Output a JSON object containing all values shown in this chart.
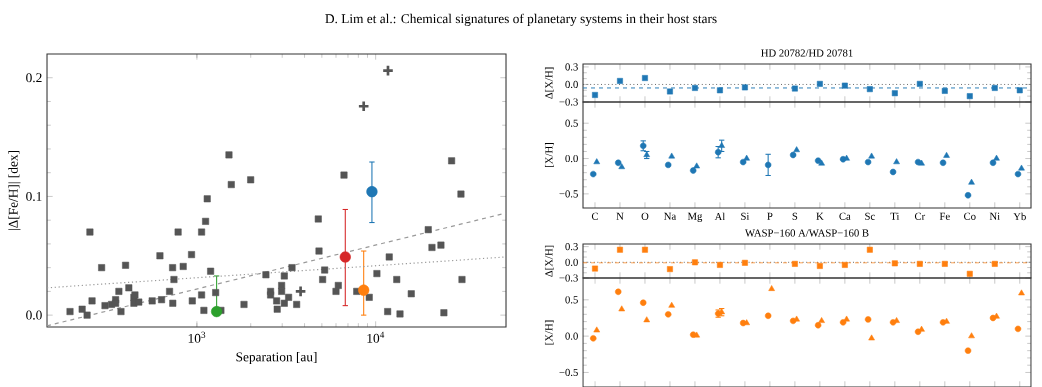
{
  "chart_data": [
    {
      "type": "scatter",
      "xlabel": "Separation [au]",
      "ylabel": "|Δ[Fe/H]| [dex]",
      "log": "x",
      "annotations": [
        "D. Lim et al.: Chemical signatures of planetary systems in their host stars"
      ],
      "xlim": [
        145,
        53600
      ],
      "ylim": [
        -0.01,
        0.22
      ],
      "xticks": [
        {
          "value": 1000,
          "label": "10$^{3}$"
        },
        {
          "value": 10000,
          "label": "10$^{4}$"
        }
      ],
      "yticks": [
        {
          "value": 0,
          "label": "0.0"
        },
        {
          "value": 0.1,
          "label": "0.1"
        },
        {
          "value": 0.2,
          "label": "0.2"
        }
      ],
      "series": [
        {
          "type": "scatter",
          "marker": "square",
          "color": "#555555",
          "x": [
            252,
            293,
            259,
            243,
            306,
            333,
            351,
            351,
            366,
            399,
            416,
            444,
            450,
            444,
            473,
            562,
            621,
            634,
            703,
            731,
            733,
            744,
            785,
            942,
            1062,
            1062,
            1094,
            1118,
            1142,
            1193,
            1273,
            1511,
            1557,
            1999,
            2432,
            2583,
            2583,
            2793,
            2813,
            2978,
            2978,
            3083,
            3083,
            3404,
            3614,
            4775,
            5050,
            5184,
            5998,
            6180,
            6650,
            7834,
            9205,
            10160,
            11670,
            13120,
            13680,
            15820,
            19690,
            20650,
            23180,
            24080,
            26600,
            30400
          ],
          "values": [
            0.07,
            0.04,
            0.012,
            0.0,
            0.008,
            0.009,
            0.013,
            0.01,
            0.02,
            0.042,
            0.023,
            0.015,
            0.017,
            0.01,
            0.011,
            0.012,
            0.05,
            0.013,
            0.02,
            0.04,
            0.01,
            0.03,
            0.07,
            0.012,
            0.07,
            0.017,
            0.004,
            0.079,
            0.098,
            0.037,
            0.019,
            0.135,
            0.11,
            0.114,
            0.034,
            0.02,
            0.017,
            0.012,
            0.005,
            0.025,
            0.02,
            0.033,
            0.01,
            0.04,
            0.009,
            0.081,
            0.03,
            0.038,
            0.02,
            0.025,
            0.118,
            0.02,
            0.015,
            0.035,
            0.003,
            0.03,
            0.001,
            0.018,
            0.072,
            0.057,
            0.059,
            0.002,
            0.13,
            0.03
          ]
        },
        {
          "type": "scatter",
          "marker": "square",
          "color": "#555555",
          "x": [
            195,
            228,
            376,
            838,
            933,
            1362,
            1834,
            3258,
            4819,
            11910,
            30000
          ],
          "values": [
            0.003,
            0.005,
            0.003,
            0.041,
            0.051,
            0.004,
            0.009,
            0.015,
            0.054,
            0.049,
            0.102
          ]
        },
        {
          "type": "scatter",
          "marker": "cross",
          "color": "#555555",
          "x": [
            3802,
            8570,
            11720
          ],
          "values": [
            0.02,
            0.176,
            0.206
          ]
        },
        {
          "type": "scatter",
          "marker": "circle",
          "color": "#2ca02c",
          "x": [
            1289
          ],
          "values": [
            0.003
          ],
          "errors": [
            [
              0.0,
              0.033
            ]
          ]
        },
        {
          "type": "scatter",
          "marker": "circle",
          "color": "#d62728",
          "x": [
            6761
          ],
          "values": [
            0.049
          ],
          "errors": [
            [
              0.008,
              0.089
            ]
          ]
        },
        {
          "type": "scatter",
          "marker": "circle",
          "color": "#ff7f0e",
          "x": [
            8570
          ],
          "values": [
            0.021
          ],
          "errors": [
            [
              0.0,
              0.054
            ]
          ]
        },
        {
          "type": "scatter",
          "marker": "circle",
          "color": "#1f77b4",
          "x": [
            9530
          ],
          "values": [
            0.104
          ],
          "errors": [
            [
              0.078,
              0.129
            ]
          ]
        },
        {
          "type": "line",
          "line_style": "dashed",
          "color": "#999999",
          "x": [
            145,
            53600
          ],
          "values": [
            -0.009,
            0.086
          ]
        },
        {
          "type": "line",
          "line_style": "dotted",
          "color": "#999999",
          "x": [
            145,
            53600
          ],
          "values": [
            0.023,
            0.049
          ]
        }
      ]
    },
    {
      "type": "scatter",
      "title": "HD 20782/HD 20781",
      "ylabel": "Δ[X/H]",
      "tick_labels": "y",
      "categories": [
        null,
        null,
        null,
        null,
        null,
        null,
        null,
        null,
        null,
        null,
        null,
        null,
        null,
        null,
        null,
        null,
        null,
        null
      ],
      "ylim": [
        -0.3,
        0.35
      ],
      "yticks": [
        {
          "value": 0.3,
          "label": "0.3"
        },
        {
          "value": 0,
          "label": "0.0"
        },
        {
          "value": -0.3,
          "label": "−0.3"
        }
      ],
      "ref_lines": [
        {
          "axis": "y",
          "value": 0,
          "color": "#555555",
          "line_style": "dotted"
        },
        {
          "axis": "y",
          "value": -0.06,
          "color": "#1f77b4",
          "line_style": "dashed"
        }
      ],
      "series": [
        {
          "type": "scatter",
          "marker": "square",
          "color": "#1f77b4",
          "values": [
            -0.18,
            0.06,
            0.11,
            -0.12,
            -0.06,
            -0.1,
            -0.05,
            null,
            -0.07,
            null,
            -0.02,
            null,
            -0.15,
            0.01,
            -0.11,
            null,
            -0.06,
            null
          ]
        },
        {
          "type": "scatter",
          "marker": "square",
          "color": "#1f77b4",
          "values": [
            null,
            null,
            null,
            null,
            null,
            null,
            null,
            null,
            null,
            0.01,
            null,
            -0.08,
            null,
            null,
            null,
            -0.2,
            null,
            -0.1
          ]
        }
      ]
    },
    {
      "type": "scatter",
      "ylabel": "[X/H]",
      "categories": [
        "C",
        "N",
        "O",
        "Na",
        "Mg",
        "Al",
        "Si",
        "P",
        "S",
        "K",
        "Ca",
        "Sc",
        "Ti",
        "Cr",
        "Fe",
        "Co",
        "Ni",
        "Yb"
      ],
      "ylim": [
        -0.7,
        0.8
      ],
      "yticks": [
        {
          "value": 0.5,
          "label": "0.5"
        },
        {
          "value": 0,
          "label": "0.0"
        },
        {
          "value": -0.5,
          "label": "−0.5"
        }
      ],
      "series": [
        {
          "type": "scatter",
          "marker": "circle",
          "color": "#1f77b4",
          "values": [
            -0.22,
            -0.06,
            0.18,
            -0.09,
            -0.17,
            0.09,
            -0.05,
            null,
            0.05,
            null,
            -0.01,
            null,
            -0.19,
            -0.05,
            -0.06,
            null,
            -0.06,
            null
          ],
          "errors": [
            null,
            null,
            0.07,
            null,
            null,
            0.08,
            null,
            null,
            null,
            null,
            null,
            null,
            null,
            null,
            null,
            null,
            null,
            null
          ]
        },
        {
          "type": "scatter",
          "marker": "circle",
          "color": "#1f77b4",
          "values": [
            null,
            null,
            null,
            null,
            null,
            null,
            null,
            -0.09,
            null,
            -0.03,
            null,
            -0.05,
            null,
            null,
            null,
            -0.52,
            null,
            -0.22
          ],
          "errors": [
            null,
            null,
            null,
            null,
            null,
            null,
            null,
            0.15,
            null,
            null,
            null,
            null,
            null,
            null,
            null,
            null,
            null,
            null
          ]
        },
        {
          "type": "scatter",
          "marker": "triangle",
          "color": "#1f77b4",
          "values": [
            -0.05,
            -0.12,
            0.05,
            0.03,
            -0.11,
            0.18,
            0.0,
            null,
            0.12,
            null,
            0.0,
            null,
            -0.05,
            -0.07,
            0.04,
            null,
            0.0,
            null
          ],
          "errors": [
            null,
            null,
            0.05,
            null,
            null,
            0.08,
            null,
            null,
            null,
            null,
            null,
            null,
            null,
            null,
            null,
            null,
            null,
            null
          ]
        },
        {
          "type": "scatter",
          "marker": "triangle",
          "color": "#1f77b4",
          "values": [
            null,
            null,
            null,
            null,
            null,
            null,
            null,
            null,
            null,
            -0.07,
            null,
            0.03,
            null,
            null,
            null,
            -0.34,
            null,
            -0.14
          ]
        }
      ]
    },
    {
      "type": "scatter",
      "title": "WASP−160 A/WASP−160 B",
      "ylabel": "Δ[X/H]",
      "tick_labels": "y",
      "categories": [
        null,
        null,
        null,
        null,
        null,
        null,
        null,
        null,
        null,
        null,
        null,
        null,
        null,
        null,
        null,
        null,
        null,
        null
      ],
      "ylim": [
        -0.3,
        0.35
      ],
      "yticks": [
        {
          "value": 0.3,
          "label": "0.3"
        },
        {
          "value": 0,
          "label": "0.0"
        },
        {
          "value": -0.3,
          "label": "−0.3"
        }
      ],
      "ref_lines": [
        {
          "axis": "y",
          "value": 0,
          "color": "#555555",
          "line_style": "dotted"
        },
        {
          "axis": "y",
          "value": -0.01,
          "color": "#ff7f0e",
          "line_style": "dashed"
        }
      ],
      "series": [
        {
          "type": "scatter",
          "marker": "square",
          "color": "#ff7f0e",
          "values": [
            -0.12,
            0.24,
            0.24,
            -0.13,
            0.0,
            -0.05,
            -0.01,
            null,
            -0.03,
            null,
            -0.05,
            null,
            -0.02,
            -0.03,
            -0.03,
            null,
            -0.03,
            null
          ]
        },
        {
          "type": "scatter",
          "marker": "square",
          "color": "#ff7f0e",
          "values": [
            null,
            null,
            null,
            null,
            null,
            null,
            null,
            null,
            null,
            -0.07,
            null,
            0.24,
            null,
            null,
            null,
            -0.22,
            null,
            null
          ]
        }
      ]
    },
    {
      "type": "scatter",
      "ylabel": "[X/H]",
      "tick_labels": "y",
      "categories": [
        null,
        null,
        null,
        null,
        null,
        null,
        null,
        null,
        null,
        null,
        null,
        null,
        null,
        null,
        null,
        null,
        null,
        null
      ],
      "ylim": [
        -0.7,
        0.8
      ],
      "yticks": [
        {
          "value": 0.5,
          "label": "0.5"
        },
        {
          "value": 0,
          "label": "0.0"
        },
        {
          "value": -0.5,
          "label": "−0.5"
        }
      ],
      "series": [
        {
          "type": "scatter",
          "marker": "circle",
          "color": "#ff7f0e",
          "values": [
            -0.03,
            0.61,
            0.46,
            0.3,
            0.02,
            0.31,
            0.18,
            null,
            0.21,
            null,
            0.19,
            null,
            0.19,
            0.06,
            0.19,
            null,
            0.25,
            null
          ],
          "errors": [
            null,
            null,
            null,
            null,
            null,
            0.05,
            null,
            null,
            null,
            null,
            null,
            null,
            null,
            null,
            null,
            null,
            null,
            null
          ]
        },
        {
          "type": "scatter",
          "marker": "circle",
          "color": "#ff7f0e",
          "values": [
            null,
            null,
            null,
            null,
            null,
            null,
            null,
            0.28,
            null,
            0.15,
            null,
            0.23,
            null,
            null,
            null,
            -0.2,
            null,
            0.1
          ]
        },
        {
          "type": "scatter",
          "marker": "triangle",
          "color": "#ff7f0e",
          "values": [
            0.08,
            0.37,
            0.22,
            0.42,
            0.01,
            0.33,
            0.18,
            null,
            0.23,
            null,
            0.23,
            null,
            0.21,
            0.09,
            0.2,
            null,
            0.27,
            null
          ],
          "errors": [
            null,
            null,
            null,
            null,
            null,
            0.05,
            null,
            null,
            null,
            null,
            null,
            null,
            null,
            null,
            null,
            null,
            null,
            null
          ]
        },
        {
          "type": "scatter",
          "marker": "triangle",
          "color": "#ff7f0e",
          "values": [
            null,
            null,
            null,
            null,
            null,
            null,
            null,
            0.65,
            null,
            0.21,
            null,
            -0.03,
            null,
            null,
            null,
            0.0,
            null,
            0.59
          ]
        }
      ]
    }
  ]
}
